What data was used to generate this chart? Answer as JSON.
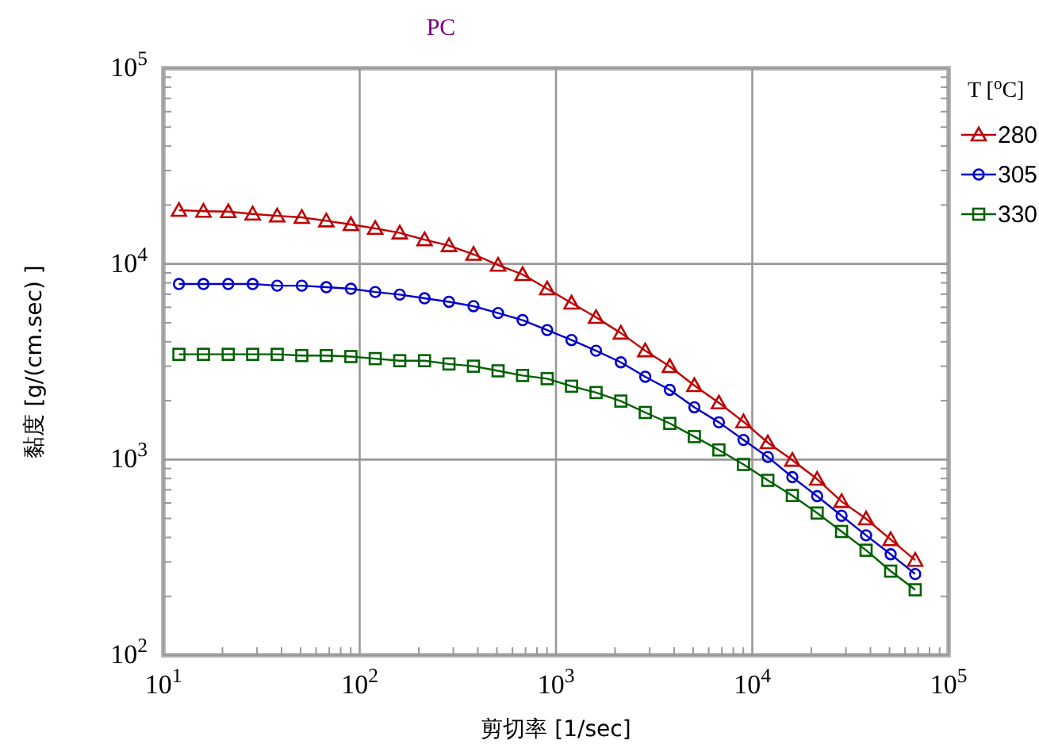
{
  "chart_data": {
    "type": "line",
    "title": "PC",
    "xlabel": "剪切率 [1/sec]",
    "ylabel": "黏度 [g/(cm.sec) ]",
    "legend_title": "T [$^{o}$C]",
    "x": [
      12.0,
      16.0,
      21.4,
      28.5,
      38.0,
      50.7,
      67.6,
      90.2,
      120,
      160,
      214,
      285,
      380,
      507,
      676,
      902,
      1200,
      1600,
      2140,
      2850,
      3800,
      5070,
      6760,
      9020,
      12000,
      16000,
      21400,
      28500,
      38000,
      50700,
      67600
    ],
    "series": [
      {
        "name": "280",
        "color": "#c00000",
        "marker": "triangle",
        "values": [
          18800,
          18600,
          18500,
          18000,
          17600,
          17300,
          16600,
          15900,
          15200,
          14400,
          13300,
          12400,
          11200,
          9860,
          8830,
          7460,
          6310,
          5330,
          4430,
          3600,
          2990,
          2390,
          1950,
          1560,
          1220,
          993,
          794,
          611,
          498,
          390,
          306
        ]
      },
      {
        "name": "305",
        "color": "#0000cc",
        "marker": "circle",
        "values": [
          7890,
          7890,
          7890,
          7890,
          7740,
          7740,
          7600,
          7460,
          7180,
          6970,
          6670,
          6400,
          6080,
          5610,
          5160,
          4590,
          4080,
          3600,
          3140,
          2650,
          2270,
          1850,
          1550,
          1260,
          1030,
          813,
          650,
          516,
          410,
          328,
          260
        ]
      },
      {
        "name": "330",
        "color": "#006000",
        "marker": "square",
        "values": [
          3450,
          3450,
          3450,
          3450,
          3450,
          3400,
          3400,
          3360,
          3280,
          3200,
          3200,
          3080,
          3000,
          2840,
          2690,
          2590,
          2370,
          2200,
          1990,
          1740,
          1530,
          1310,
          1120,
          944,
          783,
          655,
          533,
          429,
          344,
          269,
          216
        ]
      }
    ],
    "log": "xy",
    "xlim": [
      10,
      100000
    ],
    "ylim": [
      100,
      100000
    ],
    "xticks": [
      {
        "value": 10,
        "label": "10$^{1}$"
      },
      {
        "value": 100,
        "label": "10$^{2}$"
      },
      {
        "value": 1000,
        "label": "10$^{3}$"
      },
      {
        "value": 10000,
        "label": "10$^{4}$"
      },
      {
        "value": 100000,
        "label": "10$^{5}$"
      }
    ],
    "yticks": [
      {
        "value": 100,
        "label": "10$^{2}$"
      },
      {
        "value": 1000,
        "label": "10$^{3}$"
      },
      {
        "value": 10000,
        "label": "10$^{4}$"
      },
      {
        "value": 100000,
        "label": "10$^{5}$"
      }
    ],
    "grid": true,
    "legend": "right",
    "line_style": "solid"
  }
}
